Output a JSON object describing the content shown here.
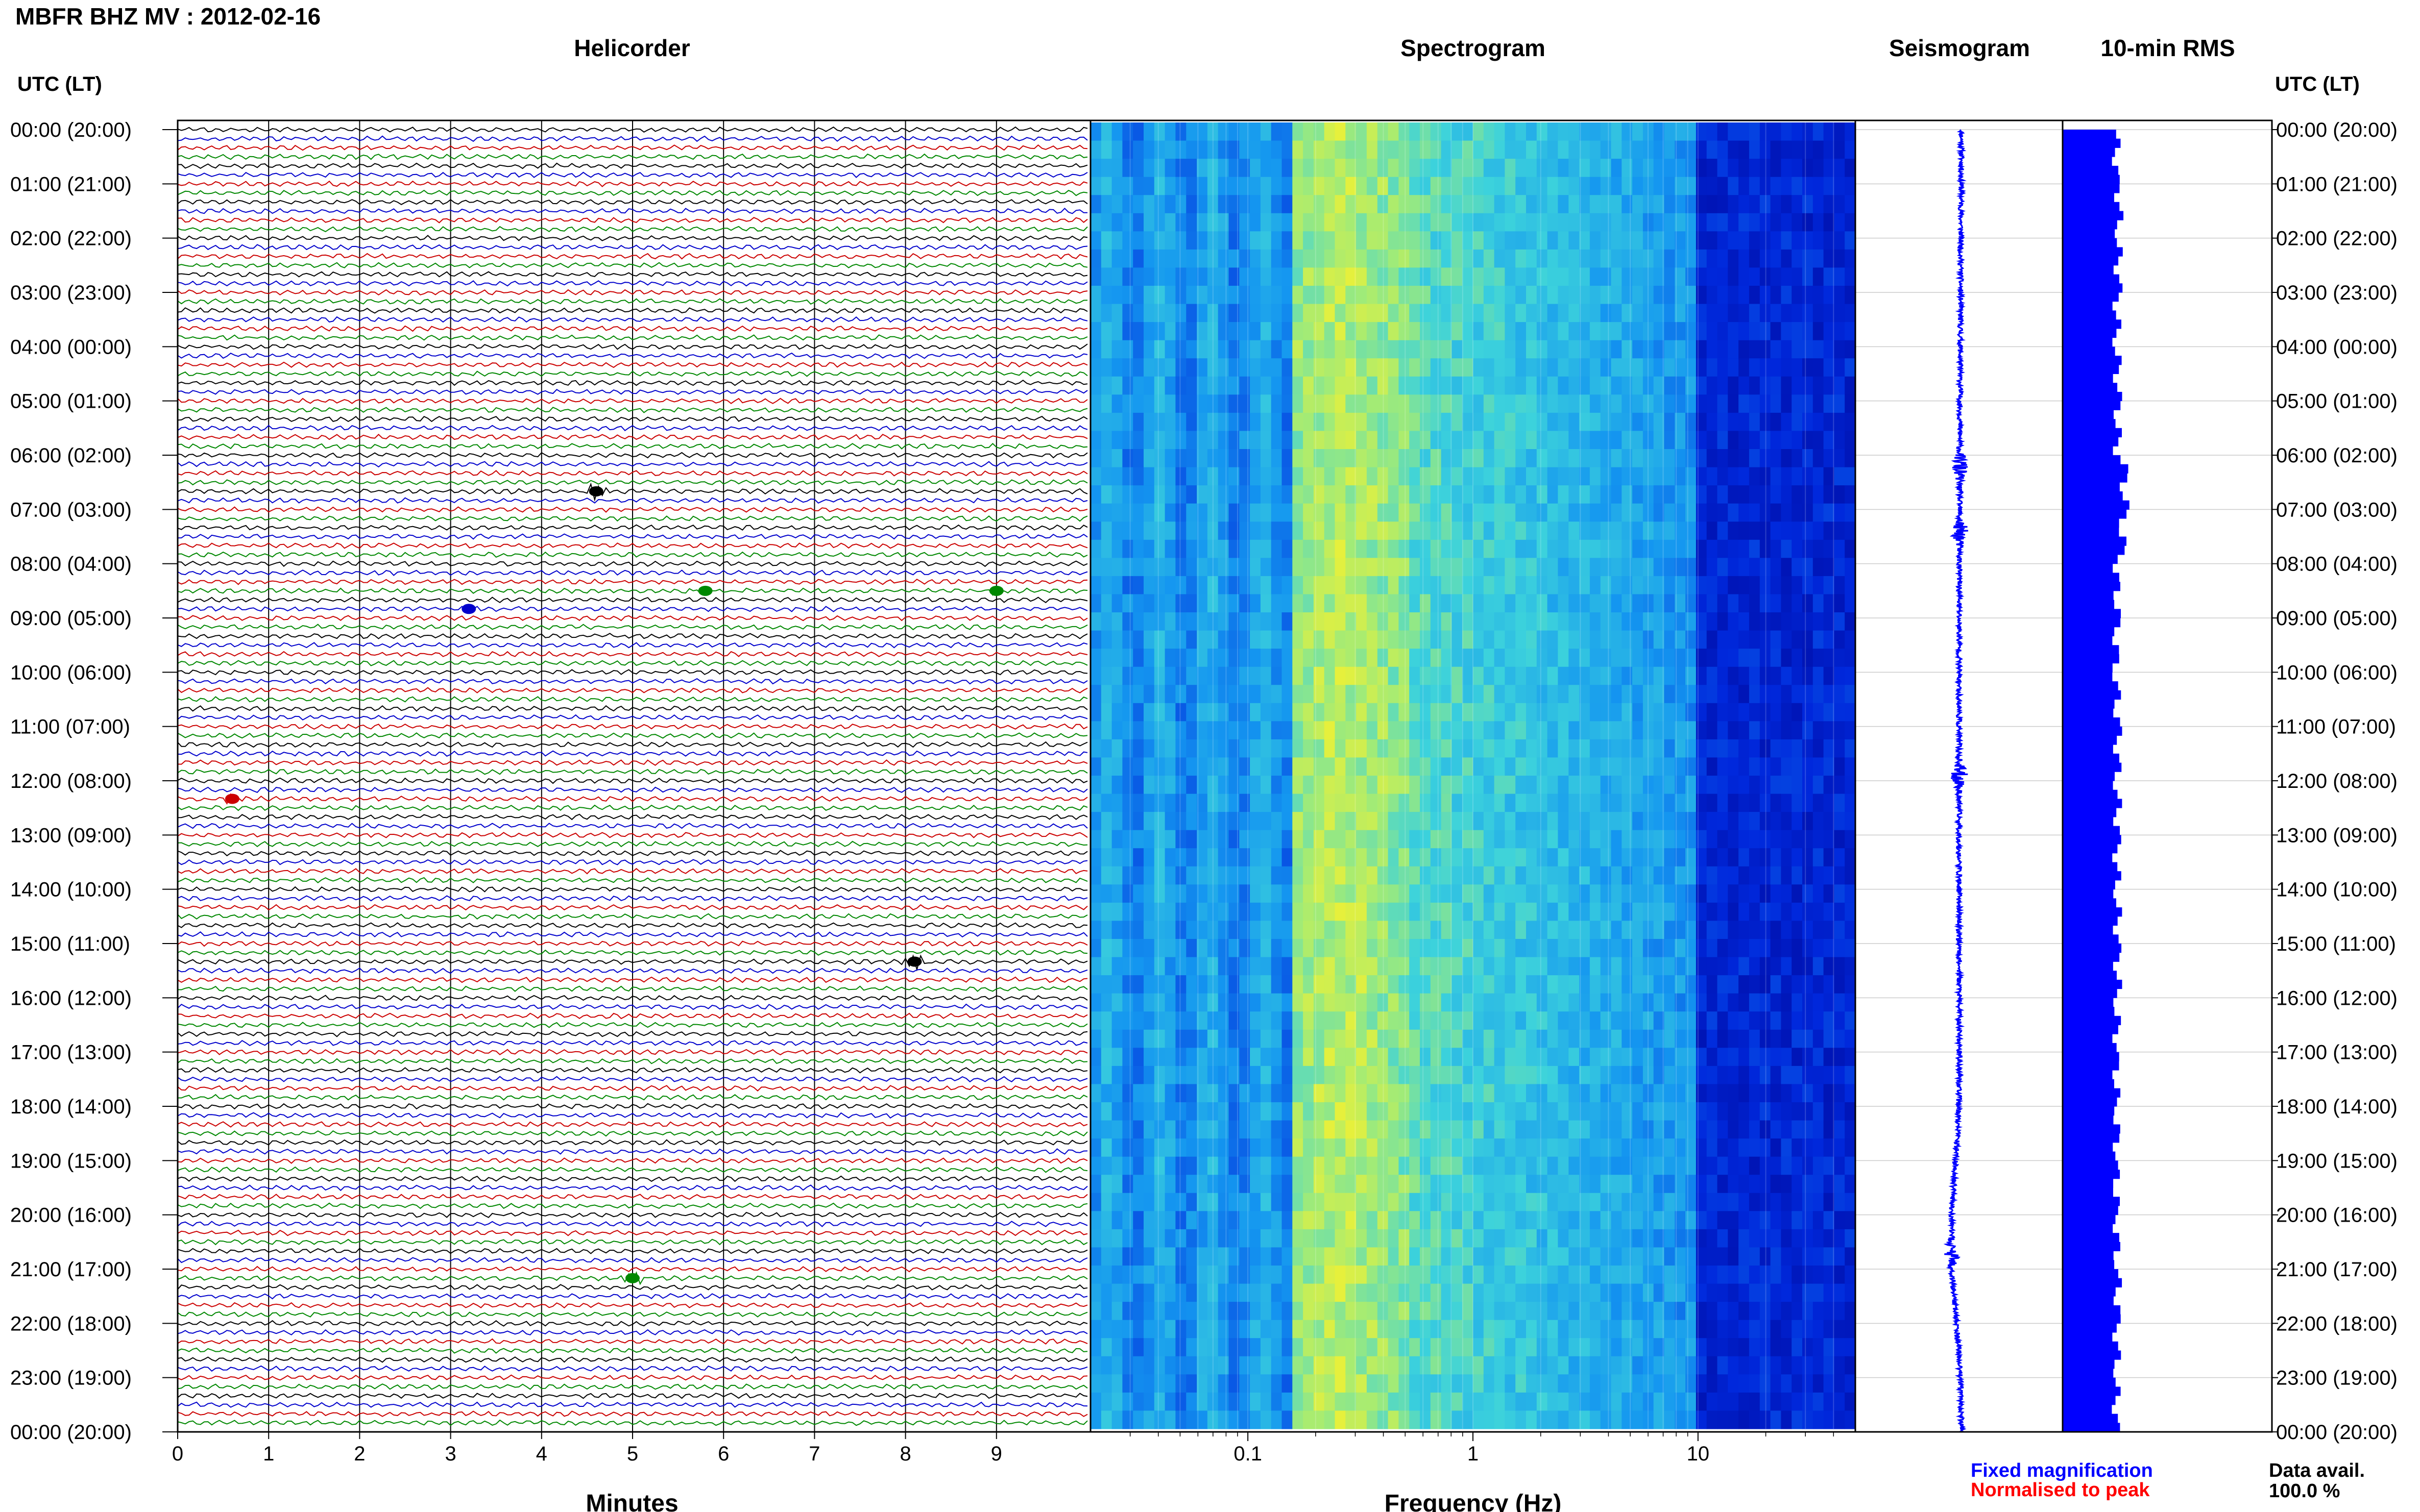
{
  "figure": {
    "title": "MBFR BHZ MV : 2012-02-16",
    "time_axis_header_left": "UTC (LT)",
    "time_axis_header_right": "UTC (LT)",
    "row_labels": [
      "00:00 (20:00)",
      "01:00 (21:00)",
      "02:00 (22:00)",
      "03:00 (23:00)",
      "04:00 (00:00)",
      "05:00 (01:00)",
      "06:00 (02:00)",
      "07:00 (03:00)",
      "08:00 (04:00)",
      "09:00 (05:00)",
      "10:00 (06:00)",
      "11:00 (07:00)",
      "12:00 (08:00)",
      "13:00 (09:00)",
      "14:00 (10:00)",
      "15:00 (11:00)",
      "16:00 (12:00)",
      "17:00 (13:00)",
      "18:00 (14:00)",
      "19:00 (15:00)",
      "20:00 (16:00)",
      "21:00 (17:00)",
      "22:00 (18:00)",
      "23:00 (19:00)",
      "00:00 (20:00)"
    ],
    "legend": {
      "fixed": "Fixed magnification",
      "normalised": "Normalised to peak"
    },
    "data_availability": {
      "label": "Data avail.",
      "value": "100.0 %"
    },
    "colors": {
      "trace_cycle": [
        "#000000",
        "#0000cc",
        "#cc0000",
        "#008800"
      ],
      "seismogram": "#0000ff",
      "rms": "#0000ff",
      "fixed": "#0000ff",
      "normalised": "#ff0000"
    }
  },
  "chart_data": [
    {
      "type": "line",
      "panel": "helicorder",
      "title": "Helicorder",
      "xlabel": "Minutes",
      "xlim": [
        0,
        10
      ],
      "x_ticks": [
        "0",
        "1",
        "2",
        "3",
        "4",
        "5",
        "6",
        "7",
        "8",
        "9"
      ],
      "rows": 144,
      "row_minutes": 10,
      "notable_events": [
        {
          "row": 40,
          "minute": 4.6
        },
        {
          "row": 51,
          "minute": 5.8
        },
        {
          "row": 51,
          "minute": 9.0
        },
        {
          "row": 127,
          "minute": 5.0
        },
        {
          "row": 92,
          "minute": 8.1
        },
        {
          "row": 53,
          "minute": 3.2
        },
        {
          "row": 74,
          "minute": 0.6
        }
      ]
    },
    {
      "type": "heatmap",
      "panel": "spectrogram",
      "title": "Spectrogram",
      "xlabel": "Frequency (Hz)",
      "xscale": "log",
      "xlim": [
        0.02,
        50
      ],
      "x_ticks": [
        "0.1",
        "1",
        "10"
      ],
      "colormap": "blue-cyan-yellow",
      "peak_band_hz": [
        0.15,
        0.5
      ],
      "low_energy_band_hz": [
        10,
        50
      ]
    },
    {
      "type": "line",
      "panel": "seismogram",
      "title": "Seismogram",
      "bursts_at_hour": [
        6.2,
        7.4,
        11.9,
        20.7
      ]
    },
    {
      "type": "bar",
      "panel": "rms",
      "title": "10-min RMS",
      "orientation": "horizontal",
      "hours": [
        0,
        1,
        2,
        3,
        4,
        5,
        6,
        7,
        8,
        9,
        10,
        11,
        12,
        13,
        14,
        15,
        16,
        17,
        18,
        19,
        20,
        21,
        22,
        23
      ],
      "values_relative": [
        0.78,
        0.82,
        0.81,
        0.79,
        0.8,
        0.8,
        0.9,
        0.87,
        0.79,
        0.78,
        0.79,
        0.8,
        0.8,
        0.79,
        0.8,
        0.8,
        0.79,
        0.78,
        0.79,
        0.78,
        0.79,
        0.8,
        0.79,
        0.78
      ]
    }
  ]
}
